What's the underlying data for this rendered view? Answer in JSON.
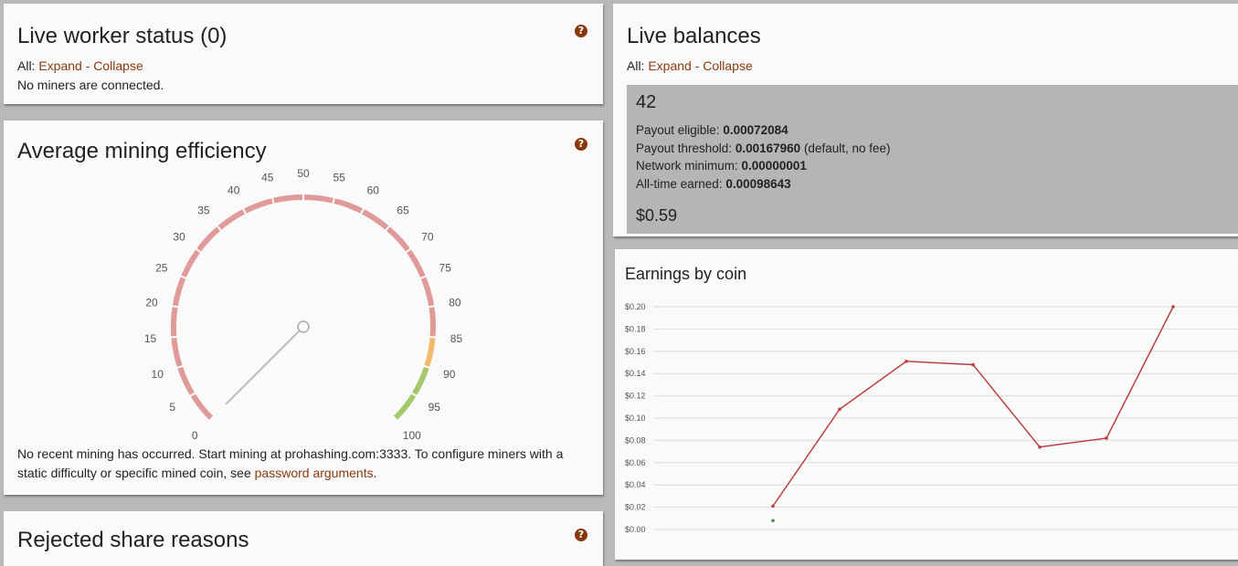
{
  "worker": {
    "title": "Live worker status (0)",
    "all_label": "All:",
    "expand": "Expand",
    "dash": "-",
    "collapse": "Collapse",
    "message": "No miners are connected."
  },
  "efficiency": {
    "title": "Average mining efficiency",
    "gauge_value": 0,
    "gauge_min": 0,
    "gauge_max": 100,
    "gauge_ticks": [
      "0",
      "5",
      "10",
      "15",
      "20",
      "25",
      "30",
      "35",
      "40",
      "45",
      "50",
      "55",
      "60",
      "65",
      "70",
      "75",
      "80",
      "85",
      "90",
      "95",
      "100"
    ],
    "bands": [
      {
        "from": 0,
        "to": 85,
        "color": "#e09a9a"
      },
      {
        "from": 85,
        "to": 90,
        "color": "#f4b96b"
      },
      {
        "from": 90,
        "to": 100,
        "color": "#a5c96a"
      }
    ],
    "note_prefix": "No recent mining has occurred. Start mining at prohashing.com:3333. To configure miners with a static difficulty or specific mined coin, see ",
    "note_link": "password arguments",
    "note_suffix": "."
  },
  "rejected": {
    "title": "Rejected share reasons"
  },
  "balances": {
    "title": "Live balances",
    "all_label": "All:",
    "expand": "Expand",
    "dash": "-",
    "collapse": "Collapse",
    "coin": {
      "name": "42",
      "payout_eligible_label": "Payout eligible:",
      "payout_eligible": "0.00072084",
      "payout_threshold_label": "Payout threshold:",
      "payout_threshold": "0.00167960",
      "payout_threshold_note": "(default, no fee)",
      "network_minimum_label": "Network minimum:",
      "network_minimum": "0.00000001",
      "all_time_label": "All-time earned:",
      "all_time": "0.00098643",
      "usd": "$0.59"
    }
  },
  "earnings": {
    "title": "Earnings by coin"
  },
  "chart_data": {
    "type": "line",
    "title": "Earnings by coin",
    "ylim": [
      0,
      0.2
    ],
    "y_ticks": [
      "$0.00",
      "$0.02",
      "$0.04",
      "$0.06",
      "$0.08",
      "$0.10",
      "$0.12",
      "$0.14",
      "$0.16",
      "$0.18",
      "$0.20"
    ],
    "grid": true,
    "legend": "none",
    "series": [
      {
        "values": [
          null,
          0.021,
          0.108,
          0.151,
          0.148,
          0.074,
          0.082,
          0.2
        ],
        "color": "#b84040"
      },
      {
        "values": [
          null,
          0.008,
          null,
          null,
          null,
          null,
          null,
          null
        ],
        "color": "#4a8a4a"
      }
    ]
  }
}
